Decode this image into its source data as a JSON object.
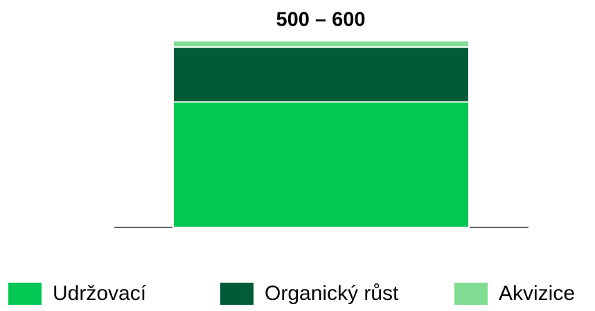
{
  "chart_data": {
    "type": "stacked_bar",
    "title": "500 – 600",
    "categories": [
      null
    ],
    "series": [
      {
        "name": "Udržovací",
        "color": "#00c853",
        "values": [
          400
        ]
      },
      {
        "name": "Organický růst",
        "color": "#005c36",
        "values": [
          175
        ]
      },
      {
        "name": "Akvizice",
        "color": "#80dc90",
        "values": [
          20
        ]
      }
    ],
    "legend": "bottom"
  }
}
